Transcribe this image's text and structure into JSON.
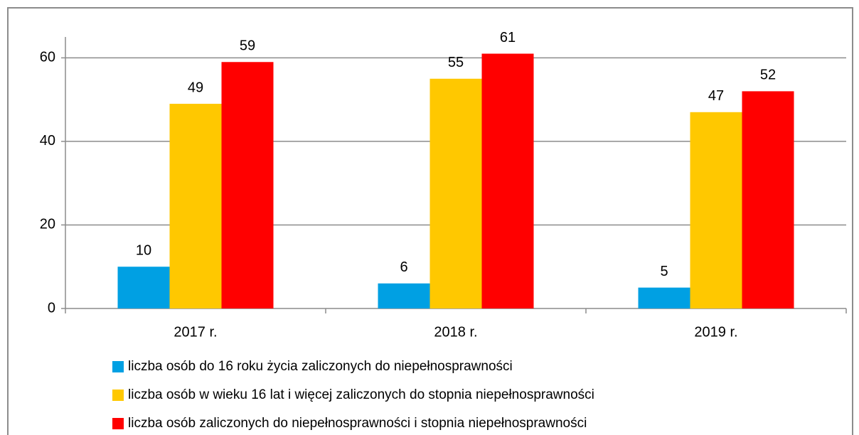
{
  "chart_data": {
    "type": "bar",
    "categories": [
      "2017 r.",
      "2018 r.",
      "2019 r."
    ],
    "series": [
      {
        "name": "liczba osób do 16 roku życia zaliczonych do niepełnosprawności",
        "color": "#00a0e3",
        "values": [
          10,
          6,
          5
        ]
      },
      {
        "name": "liczba osób w wieku 16 lat i więcej zaliczonych do stopnia niepełnosprawności",
        "color": "#ffc800",
        "values": [
          49,
          55,
          47
        ]
      },
      {
        "name": "liczba osób zaliczonych do niepełnosprawności i stopnia niepełnosprawności",
        "color": "#ff0000",
        "values": [
          59,
          61,
          52
        ]
      }
    ],
    "ylim": [
      0,
      65
    ],
    "yticks": [
      0,
      20,
      40,
      60
    ],
    "grid": true,
    "legend": "bottom"
  }
}
